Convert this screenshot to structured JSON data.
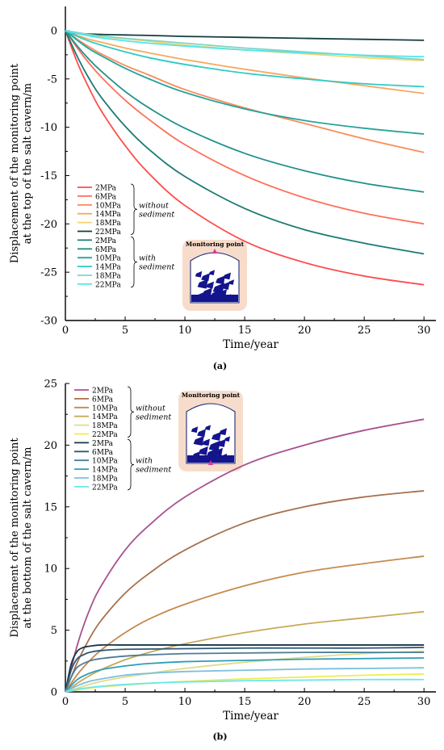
{
  "chart_data": [
    {
      "type": "line",
      "panel_label": "(a)",
      "xlabel": "Time/year",
      "ylabel_lines": [
        "Displacement of the monitoring point",
        "at the top of the salt cavern/m"
      ],
      "xlim": [
        0,
        31
      ],
      "ylim": [
        -30,
        2.5
      ],
      "xticks": [
        0,
        5,
        10,
        15,
        20,
        25,
        30
      ],
      "yticks": [
        0,
        -5,
        -10,
        -15,
        -20,
        -25,
        -30
      ],
      "legend": {
        "placement": "bottom-left",
        "group_labels": [
          [
            "without",
            "sediment"
          ],
          [
            "with",
            "sediment"
          ]
        ]
      },
      "inset": {
        "label": "Monitoring point",
        "point_at": "top"
      },
      "series": [
        {
          "name": "2MPa",
          "group": "without sediment",
          "color": "#ff4d4d",
          "x": [
            0,
            1,
            2,
            3,
            5,
            7,
            10,
            15,
            20,
            25,
            30
          ],
          "y": [
            0,
            -3.3,
            -6.0,
            -8.3,
            -11.9,
            -14.8,
            -18.1,
            -21.8,
            -24.0,
            -25.4,
            -26.3
          ]
        },
        {
          "name": "6MPa",
          "group": "without sediment",
          "color": "#ff6f5a",
          "x": [
            0,
            1,
            2,
            3,
            5,
            7,
            10,
            15,
            20,
            25,
            30
          ],
          "y": [
            0,
            -1.8,
            -3.4,
            -4.8,
            -7.2,
            -9.2,
            -11.8,
            -15.0,
            -17.3,
            -18.9,
            -20.0
          ]
        },
        {
          "name": "10MPa",
          "group": "without sediment",
          "color": "#fb8c5a",
          "x": [
            0,
            1,
            2,
            3,
            5,
            7,
            10,
            15,
            20,
            25,
            30
          ],
          "y": [
            0,
            -0.9,
            -1.7,
            -2.4,
            -3.6,
            -4.6,
            -6.1,
            -8.0,
            -9.6,
            -11.2,
            -12.6
          ]
        },
        {
          "name": "14MPa",
          "group": "without sediment",
          "color": "#f8a860",
          "x": [
            0,
            1,
            2,
            3,
            5,
            7,
            10,
            15,
            20,
            25,
            30
          ],
          "y": [
            0,
            -0.5,
            -0.9,
            -1.2,
            -1.8,
            -2.3,
            -3.0,
            -4.0,
            -4.9,
            -5.7,
            -6.5
          ]
        },
        {
          "name": "18MPa",
          "group": "without sediment",
          "color": "#f6d36a",
          "x": [
            0,
            1,
            2,
            3,
            5,
            7,
            10,
            15,
            20,
            25,
            30
          ],
          "y": [
            0,
            -0.25,
            -0.45,
            -0.6,
            -0.85,
            -1.1,
            -1.5,
            -2.0,
            -2.4,
            -2.8,
            -3.1
          ]
        },
        {
          "name": "22MPa",
          "group": "without sediment",
          "color": "#123d3d",
          "x": [
            0,
            1,
            2,
            3,
            5,
            7,
            10,
            15,
            20,
            25,
            30
          ],
          "y": [
            0,
            -0.3,
            -0.35,
            -0.4,
            -0.45,
            -0.5,
            -0.6,
            -0.7,
            -0.8,
            -0.9,
            -1.0
          ]
        },
        {
          "name": "2MPa",
          "group": "with sediment",
          "color": "#1b7a74",
          "x": [
            0,
            1,
            2,
            3,
            5,
            7,
            10,
            15,
            20,
            25,
            30
          ],
          "y": [
            0,
            -2.7,
            -5.0,
            -6.9,
            -9.9,
            -12.3,
            -15.1,
            -18.4,
            -20.6,
            -22.0,
            -23.1
          ]
        },
        {
          "name": "6MPa",
          "group": "with sediment",
          "color": "#21918a",
          "x": [
            0,
            1,
            2,
            3,
            5,
            7,
            10,
            15,
            20,
            25,
            30
          ],
          "y": [
            0,
            -1.6,
            -3.0,
            -4.2,
            -6.3,
            -8.0,
            -10.1,
            -12.7,
            -14.5,
            -15.8,
            -16.7
          ]
        },
        {
          "name": "10MPa",
          "group": "with sediment",
          "color": "#26a39b",
          "x": [
            0,
            1,
            2,
            3,
            5,
            7,
            10,
            15,
            20,
            25,
            30
          ],
          "y": [
            0,
            -1.0,
            -1.9,
            -2.6,
            -3.9,
            -5.0,
            -6.4,
            -8.1,
            -9.3,
            -10.1,
            -10.7
          ]
        },
        {
          "name": "14MPa",
          "group": "with sediment",
          "color": "#2ccbc4",
          "x": [
            0,
            1,
            2,
            3,
            5,
            7,
            10,
            15,
            20,
            25,
            30
          ],
          "y": [
            0,
            -0.6,
            -1.1,
            -1.5,
            -2.2,
            -2.8,
            -3.5,
            -4.4,
            -5.0,
            -5.5,
            -5.8
          ]
        },
        {
          "name": "18MPa",
          "group": "with sediment",
          "color": "#7ed4c8",
          "x": [
            0,
            1,
            2,
            3,
            5,
            7,
            10,
            15,
            20,
            25,
            30
          ],
          "y": [
            0,
            -0.2,
            -0.4,
            -0.55,
            -0.8,
            -1.0,
            -1.3,
            -1.8,
            -2.2,
            -2.6,
            -3.0
          ]
        },
        {
          "name": "22MPa",
          "group": "with sediment",
          "color": "#52e6ec",
          "x": [
            0,
            1,
            2,
            3,
            5,
            7,
            10,
            15,
            20,
            25,
            30
          ],
          "y": [
            0,
            -0.3,
            -0.55,
            -0.75,
            -1.05,
            -1.3,
            -1.6,
            -2.0,
            -2.3,
            -2.55,
            -2.7
          ]
        }
      ]
    },
    {
      "type": "line",
      "panel_label": "(b)",
      "xlabel": "Time/year",
      "ylabel_lines": [
        "Displacement of the monitoring point",
        "at the bottom of the salt cavern/m"
      ],
      "xlim": [
        0,
        31
      ],
      "ylim": [
        0,
        25
      ],
      "xticks": [
        0,
        5,
        10,
        15,
        20,
        25,
        30
      ],
      "yticks": [
        0,
        5,
        10,
        15,
        20,
        25
      ],
      "legend": {
        "placement": "top-left",
        "group_labels": [
          [
            "without",
            "sediment"
          ],
          [
            "with",
            "sediment"
          ]
        ]
      },
      "inset": {
        "label": "Monitoring point",
        "point_at": "bottom"
      },
      "series": [
        {
          "name": "2MPa",
          "group": "without sediment",
          "color": "#a8528e",
          "x": [
            0,
            1,
            2,
            3,
            5,
            7,
            10,
            15,
            20,
            25,
            30
          ],
          "y": [
            0,
            3.8,
            6.6,
            8.6,
            11.5,
            13.5,
            15.8,
            18.4,
            20.0,
            21.2,
            22.1
          ]
        },
        {
          "name": "6MPa",
          "group": "without sediment",
          "color": "#a6704e",
          "x": [
            0,
            1,
            2,
            3,
            5,
            7,
            10,
            15,
            20,
            25,
            30
          ],
          "y": [
            0,
            2.4,
            4.3,
            5.8,
            8.0,
            9.6,
            11.5,
            13.7,
            15.0,
            15.8,
            16.3
          ]
        },
        {
          "name": "10MPa",
          "group": "without sediment",
          "color": "#c58a4e",
          "x": [
            0,
            1,
            2,
            3,
            5,
            7,
            10,
            15,
            20,
            25,
            30
          ],
          "y": [
            0,
            1.4,
            2.5,
            3.4,
            4.8,
            5.9,
            7.1,
            8.6,
            9.7,
            10.4,
            11.0
          ]
        },
        {
          "name": "14MPa",
          "group": "without sediment",
          "color": "#c9a95a",
          "x": [
            0,
            1,
            2,
            3,
            5,
            7,
            10,
            15,
            20,
            25,
            30
          ],
          "y": [
            0,
            0.7,
            1.3,
            1.8,
            2.6,
            3.2,
            3.9,
            4.8,
            5.5,
            6.0,
            6.5
          ]
        },
        {
          "name": "18MPa",
          "group": "without sediment",
          "color": "#e0dc8a",
          "x": [
            0,
            1,
            2,
            3,
            5,
            7,
            10,
            15,
            20,
            25,
            30
          ],
          "y": [
            0,
            0.3,
            0.6,
            0.85,
            1.2,
            1.5,
            1.9,
            2.4,
            2.8,
            3.1,
            3.3
          ]
        },
        {
          "name": "22MPa",
          "group": "without sediment",
          "color": "#eded50",
          "x": [
            0,
            1,
            2,
            3,
            5,
            7,
            10,
            15,
            20,
            25,
            30
          ],
          "y": [
            0,
            0.15,
            0.3,
            0.4,
            0.55,
            0.7,
            0.85,
            1.05,
            1.2,
            1.35,
            1.45
          ]
        },
        {
          "name": "2MPa",
          "group": "with sediment",
          "color": "#15364a",
          "x": [
            0,
            0.5,
            1,
            1.5,
            2,
            3,
            5,
            10,
            15,
            20,
            25,
            30
          ],
          "y": [
            0,
            2.3,
            3.3,
            3.6,
            3.7,
            3.8,
            3.8,
            3.8,
            3.8,
            3.8,
            3.8,
            3.8
          ]
        },
        {
          "name": "6MPa",
          "group": "with sediment",
          "color": "#2e5874",
          "x": [
            0,
            0.5,
            1,
            1.5,
            2,
            3,
            5,
            10,
            15,
            20,
            25,
            30
          ],
          "y": [
            0,
            1.8,
            2.7,
            3.0,
            3.2,
            3.35,
            3.45,
            3.5,
            3.55,
            3.55,
            3.55,
            3.6
          ]
        },
        {
          "name": "10MPa",
          "group": "with sediment",
          "color": "#4d7d98",
          "x": [
            0,
            0.5,
            1,
            2,
            3,
            5,
            7,
            10,
            15,
            20,
            25,
            30
          ],
          "y": [
            0,
            1.2,
            2.0,
            2.5,
            2.7,
            2.9,
            3.0,
            3.1,
            3.15,
            3.2,
            3.2,
            3.2
          ]
        },
        {
          "name": "14MPa",
          "group": "with sediment",
          "color": "#2f9db7",
          "x": [
            0,
            1,
            2,
            3,
            5,
            7,
            10,
            15,
            20,
            25,
            30
          ],
          "y": [
            0,
            1.0,
            1.5,
            1.8,
            2.1,
            2.3,
            2.45,
            2.55,
            2.65,
            2.7,
            2.75
          ]
        },
        {
          "name": "18MPa",
          "group": "with sediment",
          "color": "#7bc0dd",
          "x": [
            0,
            1,
            2,
            3,
            5,
            7,
            10,
            15,
            20,
            25,
            30
          ],
          "y": [
            0,
            0.5,
            0.85,
            1.05,
            1.35,
            1.5,
            1.65,
            1.75,
            1.85,
            1.9,
            1.95
          ]
        },
        {
          "name": "22MPa",
          "group": "with sediment",
          "color": "#6ce6ee",
          "x": [
            0,
            1,
            2,
            3,
            5,
            7,
            10,
            15,
            20,
            25,
            30
          ],
          "y": [
            0,
            0.2,
            0.35,
            0.45,
            0.6,
            0.7,
            0.8,
            0.9,
            0.95,
            1.0,
            1.0
          ]
        }
      ]
    }
  ]
}
